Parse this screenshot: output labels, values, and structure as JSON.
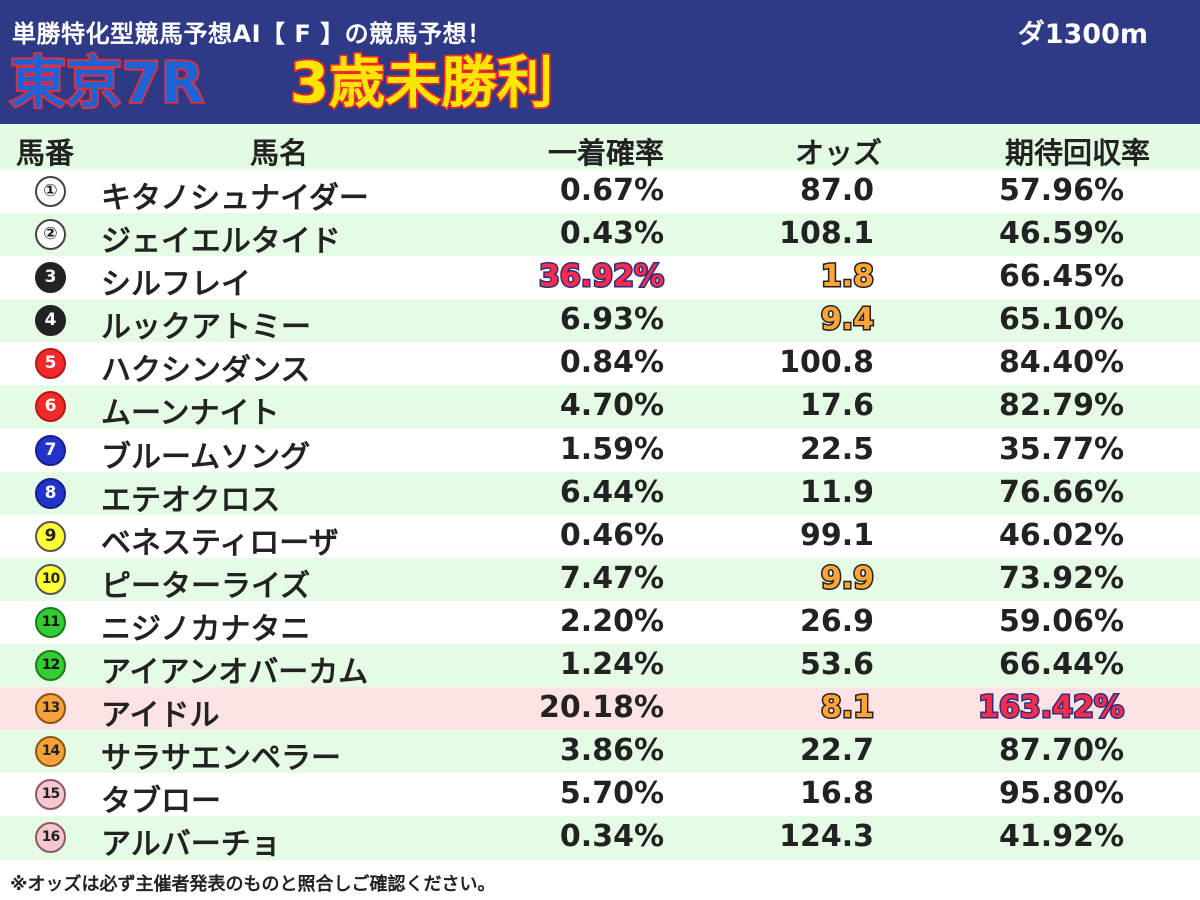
{
  "header": {
    "subtitle": "単勝特化型競馬予想AI【 F 】の競馬予想！",
    "distance": "ダ1300m",
    "course": "東京7R",
    "race": "3歳未勝利"
  },
  "columns": {
    "number": "馬番",
    "name": "馬名",
    "win_prob": "一着確率",
    "odds": "オッズ",
    "expected_return": "期待回収率"
  },
  "horses": [
    {
      "num": "①",
      "name": "キタノシュナイダー",
      "win_prob": "0.67%",
      "odds": "87.0",
      "expected_return": "57.96%"
    },
    {
      "num": "②",
      "name": "ジェイエルタイド",
      "win_prob": "0.43%",
      "odds": "108.1",
      "expected_return": "46.59%"
    },
    {
      "num": "3",
      "name": "シルフレイ",
      "win_prob": "36.92%",
      "odds": "1.8",
      "expected_return": "66.45%"
    },
    {
      "num": "4",
      "name": "ルックアトミー",
      "win_prob": "6.93%",
      "odds": "9.4",
      "expected_return": "65.10%"
    },
    {
      "num": "5",
      "name": "ハクシンダンス",
      "win_prob": "0.84%",
      "odds": "100.8",
      "expected_return": "84.40%"
    },
    {
      "num": "6",
      "name": "ムーンナイト",
      "win_prob": "4.70%",
      "odds": "17.6",
      "expected_return": "82.79%"
    },
    {
      "num": "7",
      "name": "ブルームソング",
      "win_prob": "1.59%",
      "odds": "22.5",
      "expected_return": "35.77%"
    },
    {
      "num": "8",
      "name": "エテオクロス",
      "win_prob": "6.44%",
      "odds": "11.9",
      "expected_return": "76.66%"
    },
    {
      "num": "9",
      "name": "ベネスティローザ",
      "win_prob": "0.46%",
      "odds": "99.1",
      "expected_return": "46.02%"
    },
    {
      "num": "10",
      "name": "ピーターライズ",
      "win_prob": "7.47%",
      "odds": "9.9",
      "expected_return": "73.92%"
    },
    {
      "num": "11",
      "name": "ニジノカナタニ",
      "win_prob": "2.20%",
      "odds": "26.9",
      "expected_return": "59.06%"
    },
    {
      "num": "12",
      "name": "アイアンオバーカム",
      "win_prob": "1.24%",
      "odds": "53.6",
      "expected_return": "66.44%"
    },
    {
      "num": "13",
      "name": "アイドル",
      "win_prob": "20.18%",
      "odds": "8.1",
      "expected_return": "163.42%"
    },
    {
      "num": "14",
      "name": "サラサエンペラー",
      "win_prob": "3.86%",
      "odds": "22.7",
      "expected_return": "87.70%"
    },
    {
      "num": "15",
      "name": "タブロー",
      "win_prob": "5.70%",
      "odds": "16.8",
      "expected_return": "95.80%"
    },
    {
      "num": "16",
      "name": "アルバーチョ",
      "win_prob": "0.34%",
      "odds": "124.3",
      "expected_return": "41.92%"
    }
  ],
  "footnote": "※オッズは必ず主催者発表のものと照合しご確認ください。",
  "colors": {
    "header_bg": "#2e3a85",
    "row_alt": "#e6fbe6",
    "row_highlight": "#fde3e4",
    "frame_1": "#ffffff",
    "frame_2": "#222222",
    "frame_3": "#ee2a2a",
    "frame_4": "#2233cc",
    "frame_5": "#ffff33",
    "frame_6": "#33cc33",
    "frame_7": "#f7a13a",
    "frame_8": "#f6c7cf"
  }
}
